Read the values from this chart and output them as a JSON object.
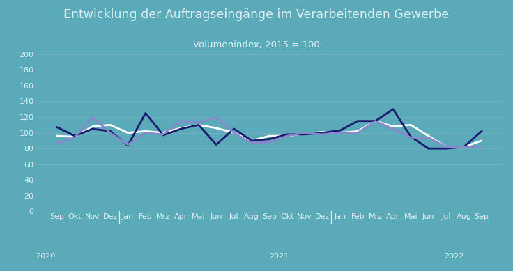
{
  "title": "Entwicklung der Auftragseingänge im Verarbeitenden Gewerbe",
  "subtitle": "Volumenindex, 2015 = 100",
  "background_color": "#5baaba",
  "plot_bg_color": "#5baaba",
  "ylim": [
    0,
    200
  ],
  "yticks": [
    0,
    20,
    40,
    60,
    80,
    100,
    120,
    140,
    160,
    180,
    200
  ],
  "x_labels": [
    "Sep",
    "Okt",
    "Nov",
    "Dez",
    "Jan",
    "Feb",
    "Mrz",
    "Apr",
    "Mai",
    "Jun",
    "Jul",
    "Aug",
    "Sep",
    "Okt",
    "Nov",
    "Dez",
    "Jan",
    "Feb",
    "Mrz",
    "Apr",
    "Mai",
    "Jun",
    "Jul",
    "Aug",
    "Sep"
  ],
  "year_labels": [
    [
      "2020",
      0
    ],
    [
      "2021",
      12
    ],
    [
      "2022",
      21
    ]
  ],
  "year_separators": [
    3.5,
    15.5
  ],
  "insgesamt": [
    96,
    95,
    108,
    110,
    100,
    102,
    100,
    106,
    110,
    106,
    100,
    90,
    96,
    96,
    99,
    101,
    100,
    102,
    115,
    108,
    110,
    96,
    82,
    82,
    90
  ],
  "inland": [
    107,
    96,
    105,
    102,
    84,
    125,
    97,
    105,
    110,
    85,
    105,
    90,
    92,
    98,
    98,
    100,
    103,
    115,
    115,
    130,
    95,
    80,
    80,
    82,
    102
  ],
  "ausland": [
    87,
    94,
    120,
    100,
    85,
    100,
    98,
    115,
    113,
    120,
    100,
    87,
    88,
    96,
    100,
    98,
    100,
    100,
    115,
    105,
    94,
    94,
    82,
    82,
    82
  ],
  "color_insgesamt": "#ffffff",
  "color_inland": "#1a1a6e",
  "color_ausland": "#8888cc",
  "line_width": 2.0,
  "title_fontsize": 12.5,
  "subtitle_fontsize": 9.5,
  "tick_fontsize": 8,
  "legend_fontsize": 9,
  "grid_color": "#72b0c0",
  "text_color": "#ddeef5"
}
